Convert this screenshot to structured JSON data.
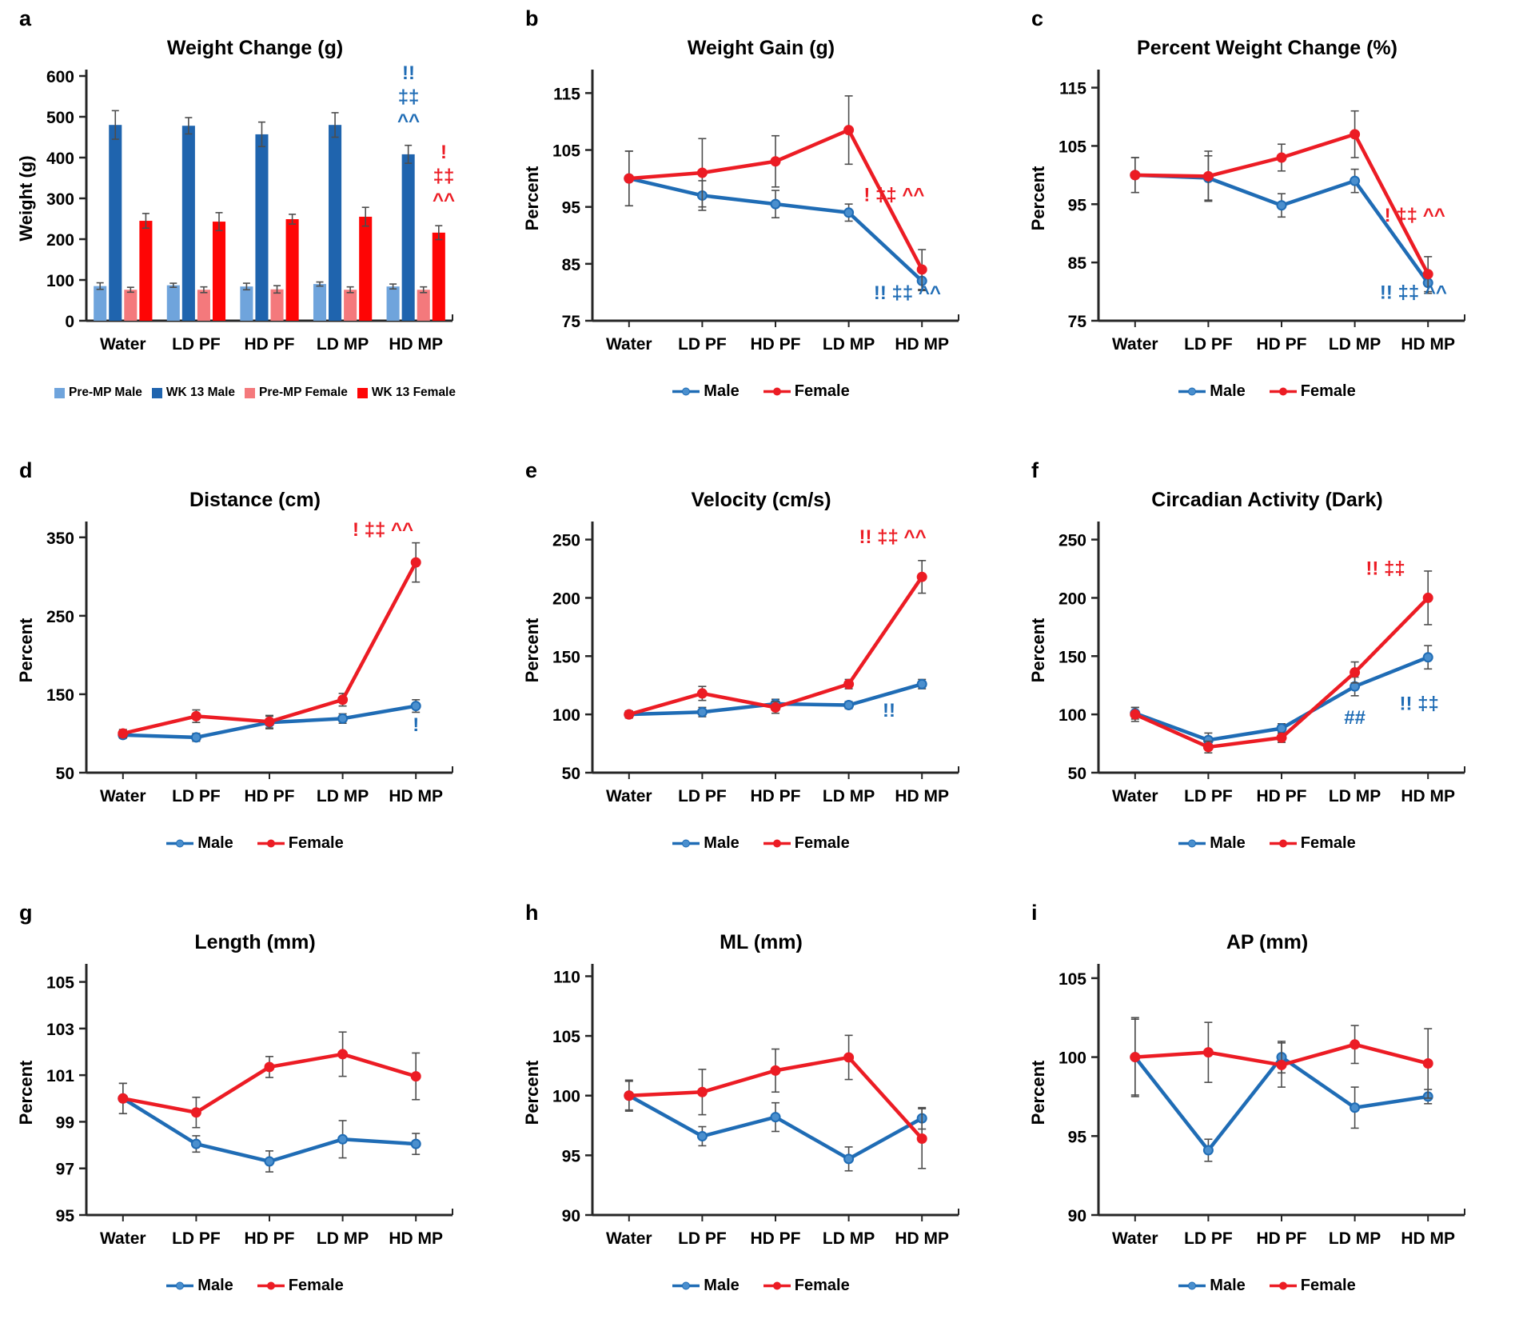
{
  "page": {
    "background": "#FFFFFF"
  },
  "palette": {
    "male_blue": "#1F6CB5",
    "male_marker_fill": "#4A8FCE",
    "female_red": "#EC1C24",
    "bar_light_blue": "#6FA4DC",
    "bar_dark_blue": "#1F64AE",
    "bar_light_red": "#F4797C",
    "bar_red": "#FE0505",
    "error_bar": "#4D4D4D",
    "axis": "#262626"
  },
  "chart_data": [
    {
      "letter": "a",
      "type": "bar",
      "title": "Weight Change (g)",
      "ylabel": "Weight (g)",
      "ylim": [
        0,
        600
      ],
      "yticks": [
        0,
        100,
        200,
        300,
        400,
        500,
        600
      ],
      "categories": [
        "Water",
        "LD PF",
        "HD PF",
        "LD MP",
        "HD MP"
      ],
      "series": [
        {
          "name": "Pre-MP Male",
          "color": "#6FA4DC",
          "values": [
            85,
            87,
            84,
            90,
            84
          ],
          "errors": [
            8,
            5,
            8,
            5,
            6
          ]
        },
        {
          "name": "WK 13 Male",
          "color": "#1F64AE",
          "values": [
            480,
            478,
            457,
            480,
            408
          ],
          "errors": [
            35,
            20,
            30,
            30,
            22
          ]
        },
        {
          "name": "Pre-MP Female",
          "color": "#F4797C",
          "values": [
            76,
            76,
            77,
            76,
            76
          ],
          "errors": [
            6,
            7,
            9,
            7,
            7
          ]
        },
        {
          "name": "WK 13 Female",
          "color": "#FE0505",
          "values": [
            245,
            243,
            249,
            255,
            216
          ],
          "errors": [
            18,
            22,
            12,
            23,
            17
          ]
        }
      ],
      "annotations": [
        {
          "lines": [
            "!!",
            "‡‡",
            "^^"
          ],
          "color": "#1F6CB5",
          "x": 3.9,
          "y": 592
        },
        {
          "lines": [
            "!",
            "‡‡",
            "^^"
          ],
          "color": "#EC1C24",
          "x": 4.38,
          "y": 398
        }
      ]
    },
    {
      "letter": "b",
      "type": "line",
      "title": "Weight Gain (g)",
      "ylabel": "Percent",
      "ylim": [
        75,
        118
      ],
      "yticks": [
        75,
        85,
        95,
        105,
        115
      ],
      "categories": [
        "Water",
        "LD PF",
        "HD PF",
        "LD MP",
        "HD MP"
      ],
      "series": [
        {
          "name": "Male",
          "color": "#1F6CB5",
          "marker_fill": "#4A8FCE",
          "values": [
            100,
            97,
            95.5,
            94,
            82
          ],
          "errors": [
            4.8,
            2.6,
            2.4,
            1.5,
            1.7
          ]
        },
        {
          "name": "Female",
          "color": "#EC1C24",
          "marker_fill": "#EC1C24",
          "values": [
            100,
            101,
            103,
            108.5,
            84
          ],
          "errors": [
            4.8,
            6,
            4.5,
            6,
            3.5
          ]
        }
      ],
      "annotations": [
        {
          "lines": [
            "! ‡‡ ^^"
          ],
          "color": "#EC1C24",
          "x": 3.62,
          "y": 96
        },
        {
          "lines": [
            "!! ‡‡ ^^"
          ],
          "color": "#1F6CB5",
          "x": 3.8,
          "y": 78.8
        }
      ]
    },
    {
      "letter": "c",
      "type": "line",
      "title": "Percent Weight Change (%)",
      "ylabel": "Percent",
      "ylim": [
        75,
        117
      ],
      "yticks": [
        75,
        85,
        95,
        105,
        115
      ],
      "categories": [
        "Water",
        "LD PF",
        "HD PF",
        "LD MP",
        "HD MP"
      ],
      "series": [
        {
          "name": "Male",
          "color": "#1F6CB5",
          "marker_fill": "#4A8FCE",
          "values": [
            100,
            99.5,
            94.8,
            99,
            81.5
          ],
          "errors": [
            3,
            3.8,
            2,
            2,
            1.8
          ]
        },
        {
          "name": "Female",
          "color": "#EC1C24",
          "marker_fill": "#EC1C24",
          "values": [
            100,
            99.8,
            103,
            107,
            83
          ],
          "errors": [
            3,
            4.3,
            2.3,
            4,
            3
          ]
        }
      ],
      "annotations": [
        {
          "lines": [
            "! ‡‡ ^^"
          ],
          "color": "#EC1C24",
          "x": 3.82,
          "y": 92
        },
        {
          "lines": [
            "!! ‡‡ ^^"
          ],
          "color": "#1F6CB5",
          "x": 3.8,
          "y": 78.8
        }
      ]
    },
    {
      "letter": "d",
      "type": "line",
      "title": "Distance (cm)",
      "ylabel": "Percent",
      "ylim": [
        50,
        362
      ],
      "yticks": [
        50,
        150,
        250,
        350
      ],
      "categories": [
        "Water",
        "LD PF",
        "HD PF",
        "LD MP",
        "HD MP"
      ],
      "series": [
        {
          "name": "Male",
          "color": "#1F6CB5",
          "marker_fill": "#4A8FCE",
          "values": [
            98,
            95,
            114,
            119,
            135
          ],
          "errors": [
            4,
            5,
            8,
            6,
            8
          ]
        },
        {
          "name": "Female",
          "color": "#EC1C24",
          "marker_fill": "#EC1C24",
          "values": [
            100,
            122,
            115,
            143,
            318
          ],
          "errors": [
            5,
            8,
            8,
            8,
            25
          ]
        }
      ],
      "annotations": [
        {
          "lines": [
            "! ‡‡ ^^"
          ],
          "color": "#EC1C24",
          "x": 3.55,
          "y": 352
        },
        {
          "lines": [
            "!"
          ],
          "color": "#1F6CB5",
          "x": 4.0,
          "y": 103
        }
      ]
    },
    {
      "letter": "e",
      "type": "line",
      "title": "Velocity (cm/s)",
      "ylabel": "Percent",
      "ylim": [
        50,
        260
      ],
      "yticks": [
        50,
        100,
        150,
        200,
        250
      ],
      "categories": [
        "Water",
        "LD PF",
        "HD PF",
        "LD MP",
        "HD MP"
      ],
      "series": [
        {
          "name": "Male",
          "color": "#1F6CB5",
          "marker_fill": "#4A8FCE",
          "values": [
            100,
            102,
            109,
            108,
            126
          ],
          "errors": [
            3,
            4,
            4,
            3,
            4
          ]
        },
        {
          "name": "Female",
          "color": "#EC1C24",
          "marker_fill": "#EC1C24",
          "values": [
            100,
            118,
            106,
            126,
            218
          ],
          "errors": [
            3,
            6,
            5,
            4,
            14
          ]
        }
      ],
      "annotations": [
        {
          "lines": [
            "!! ‡‡ ^^"
          ],
          "color": "#EC1C24",
          "x": 3.6,
          "y": 247
        },
        {
          "lines": [
            "!!"
          ],
          "color": "#1F6CB5",
          "x": 3.55,
          "y": 98
        }
      ]
    },
    {
      "letter": "f",
      "type": "line",
      "title": "Circadian Activity (Dark)",
      "ylabel": "Percent",
      "ylim": [
        50,
        260
      ],
      "yticks": [
        50,
        100,
        150,
        200,
        250
      ],
      "categories": [
        "Water",
        "LD PF",
        "HD PF",
        "LD MP",
        "HD MP"
      ],
      "series": [
        {
          "name": "Male",
          "color": "#1F6CB5",
          "marker_fill": "#4A8FCE",
          "values": [
            101,
            78,
            88,
            124,
            149
          ],
          "errors": [
            5,
            6,
            4,
            8,
            10
          ]
        },
        {
          "name": "Female",
          "color": "#EC1C24",
          "marker_fill": "#EC1C24",
          "values": [
            100,
            72,
            80,
            136,
            200
          ],
          "errors": [
            6,
            5,
            4,
            9,
            23
          ]
        }
      ],
      "annotations": [
        {
          "lines": [
            "!! ‡‡"
          ],
          "color": "#EC1C24",
          "x": 3.42,
          "y": 220
        },
        {
          "lines": [
            "##"
          ],
          "color": "#1F6CB5",
          "x": 3.0,
          "y": 92
        },
        {
          "lines": [
            "!! ‡‡"
          ],
          "color": "#1F6CB5",
          "x": 3.88,
          "y": 104
        }
      ]
    },
    {
      "letter": "g",
      "type": "line",
      "title": "Length (mm)",
      "ylabel": "Percent",
      "ylim": [
        95,
        105.5
      ],
      "yticks": [
        95,
        97,
        99,
        101,
        103,
        105
      ],
      "categories": [
        "Water",
        "LD PF",
        "HD PF",
        "LD MP",
        "HD MP"
      ],
      "series": [
        {
          "name": "Male",
          "color": "#1F6CB5",
          "marker_fill": "#4A8FCE",
          "values": [
            100,
            98.05,
            97.3,
            98.25,
            98.05
          ],
          "errors": [
            0.65,
            0.35,
            0.45,
            0.8,
            0.45
          ]
        },
        {
          "name": "Female",
          "color": "#EC1C24",
          "marker_fill": "#EC1C24",
          "values": [
            100,
            99.4,
            101.35,
            101.9,
            100.95
          ],
          "errors": [
            0.65,
            0.65,
            0.45,
            0.95,
            1.0
          ]
        }
      ],
      "annotations": []
    },
    {
      "letter": "h",
      "type": "line",
      "title": "ML (mm)",
      "ylabel": "Percent",
      "ylim": [
        90,
        110.5
      ],
      "yticks": [
        90,
        95,
        100,
        105,
        110
      ],
      "categories": [
        "Water",
        "LD PF",
        "HD PF",
        "LD MP",
        "HD MP"
      ],
      "series": [
        {
          "name": "Male",
          "color": "#1F6CB5",
          "marker_fill": "#4A8FCE",
          "values": [
            100,
            96.6,
            98.2,
            94.7,
            98.1
          ],
          "errors": [
            1.2,
            0.8,
            1.2,
            1.0,
            0.9
          ]
        },
        {
          "name": "Female",
          "color": "#EC1C24",
          "marker_fill": "#EC1C24",
          "values": [
            100,
            100.3,
            102.1,
            103.2,
            96.4
          ],
          "errors": [
            1.3,
            1.9,
            1.8,
            1.85,
            2.5
          ]
        }
      ],
      "annotations": []
    },
    {
      "letter": "i",
      "type": "line",
      "title": "AP (mm)",
      "ylabel": "Percent",
      "ylim": [
        90,
        105.5
      ],
      "yticks": [
        90,
        95,
        100,
        105
      ],
      "categories": [
        "Water",
        "LD PF",
        "HD PF",
        "LD MP",
        "HD MP"
      ],
      "series": [
        {
          "name": "Male",
          "color": "#1F6CB5",
          "marker_fill": "#4A8FCE",
          "values": [
            100,
            94.1,
            100,
            96.8,
            97.5
          ],
          "errors": [
            2.4,
            0.7,
            1.0,
            1.3,
            0.45
          ]
        },
        {
          "name": "Female",
          "color": "#EC1C24",
          "marker_fill": "#EC1C24",
          "values": [
            100,
            100.3,
            99.5,
            100.8,
            99.6
          ],
          "errors": [
            2.5,
            1.9,
            1.4,
            1.2,
            2.2
          ]
        }
      ],
      "annotations": []
    }
  ]
}
